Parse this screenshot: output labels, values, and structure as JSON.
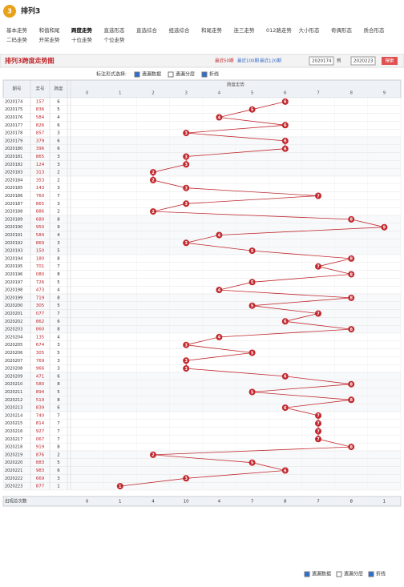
{
  "header": {
    "logo": "3",
    "title": "排列3"
  },
  "nav": [
    [
      "基本走势",
      "和值和尾",
      "跨度走势",
      "直选形态",
      "直选综合",
      "组选综合",
      "和尾走势",
      "连三走势",
      "012路走势",
      "大小形态",
      "奇偶形态",
      "质合形态"
    ],
    [
      "二码走势",
      "开奖走势",
      "十位走势",
      "个位走势"
    ]
  ],
  "toolbar": {
    "title": "排列3跨度走势图",
    "recent": [
      "最近50期",
      "最近100期",
      "最近120期"
    ],
    "from": "2020174",
    "to_label": "到",
    "to": "2020223",
    "search": "搜索"
  },
  "options": {
    "label": "标注形式选择:",
    "items": [
      "遗漏数据",
      "遗漏分层",
      "折线"
    ]
  },
  "chart_data": {
    "type": "trend-table",
    "headers": {
      "issue": "期号",
      "number": "奖号",
      "span": "跨度",
      "trend": "跨度走势"
    },
    "digits": [
      0,
      1,
      2,
      3,
      4,
      5,
      6,
      7,
      8,
      9
    ],
    "issues": [
      "2020174",
      "2020175",
      "2020176",
      "2020177",
      "2020178",
      "2020179",
      "2020180",
      "2020181",
      "2020182",
      "2020183",
      "2020184",
      "2020185",
      "2020186",
      "2020187",
      "2020188",
      "2020189",
      "2020190",
      "2020191",
      "2020192",
      "2020193",
      "2020194",
      "2020195",
      "2020196",
      "2020197",
      "2020198",
      "2020199",
      "2020200",
      "2020201",
      "2020202",
      "2020203",
      "2020204",
      "2020205",
      "2020206",
      "2020207",
      "2020208",
      "2020209",
      "2020210",
      "2020211",
      "2020212",
      "2020213",
      "2020214",
      "2020215",
      "2020216",
      "2020217",
      "2020218",
      "2020219",
      "2020220",
      "2020221",
      "2020222",
      "2020223"
    ],
    "numbers": [
      "157",
      "836",
      "584",
      "826",
      "857",
      "379",
      "396",
      "865",
      "124",
      "313",
      "353",
      "143",
      "760",
      "865",
      "886",
      "680",
      "950",
      "584",
      "869",
      "150",
      "180",
      "701",
      "080",
      "726",
      "473",
      "719",
      "305",
      "077",
      "862",
      "860",
      "135",
      "674",
      "305",
      "769",
      "966",
      "471",
      "580",
      "894",
      "519",
      "839",
      "740",
      "814",
      "927",
      "067",
      "919",
      "876",
      "883",
      "983",
      "669",
      "877"
    ],
    "values": [
      6,
      5,
      4,
      6,
      3,
      6,
      6,
      3,
      3,
      2,
      2,
      3,
      7,
      3,
      2,
      8,
      9,
      4,
      3,
      5,
      8,
      7,
      8,
      5,
      4,
      8,
      5,
      7,
      6,
      8,
      4,
      3,
      5,
      3,
      3,
      6,
      8,
      5,
      8,
      6,
      7,
      7,
      7,
      7,
      8,
      2,
      5,
      6,
      3,
      1
    ],
    "color": "#c0282d"
  },
  "stats": {
    "label": "出现总次数",
    "values": [
      0,
      1,
      4,
      10,
      4,
      7,
      8,
      7,
      8,
      1
    ]
  }
}
